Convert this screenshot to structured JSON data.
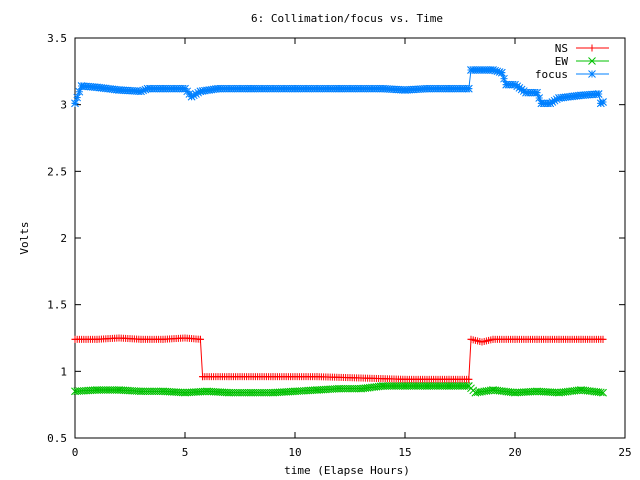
{
  "chart_data": {
    "type": "line",
    "title": "6: Collimation/focus vs. Time",
    "xlabel": "time (Elapse Hours)",
    "ylabel": "Volts",
    "xlim": [
      0,
      25
    ],
    "ylim": [
      0.5,
      3.5
    ],
    "xticks": [
      0,
      5,
      10,
      15,
      20,
      25
    ],
    "yticks": [
      0.5,
      1,
      1.5,
      2,
      2.5,
      3,
      3.5
    ],
    "xtick_labels": [
      "0",
      "5",
      "10",
      "15",
      "20",
      "25"
    ],
    "ytick_labels": [
      "0.5",
      "1",
      "1.5",
      "2",
      "2.5",
      "3",
      "3.5"
    ],
    "grid": false,
    "legend_position": "top-right",
    "series": [
      {
        "name": "NS",
        "color": "#ff0000",
        "marker": "plus",
        "points": [
          [
            0,
            1.24
          ],
          [
            1,
            1.24
          ],
          [
            2,
            1.25
          ],
          [
            3,
            1.24
          ],
          [
            4,
            1.24
          ],
          [
            5,
            1.25
          ],
          [
            5.7,
            1.24
          ],
          [
            5.8,
            0.96
          ],
          [
            7,
            0.96
          ],
          [
            9,
            0.96
          ],
          [
            11,
            0.96
          ],
          [
            13,
            0.95
          ],
          [
            15,
            0.94
          ],
          [
            17,
            0.94
          ],
          [
            17.9,
            0.94
          ],
          [
            18,
            1.24
          ],
          [
            18.5,
            1.22
          ],
          [
            19,
            1.24
          ],
          [
            20,
            1.24
          ],
          [
            21,
            1.24
          ],
          [
            22,
            1.24
          ],
          [
            23,
            1.24
          ],
          [
            24,
            1.24
          ]
        ]
      },
      {
        "name": "EW",
        "color": "#00c000",
        "marker": "cross",
        "points": [
          [
            0,
            0.85
          ],
          [
            1,
            0.86
          ],
          [
            2,
            0.86
          ],
          [
            3,
            0.85
          ],
          [
            4,
            0.85
          ],
          [
            5,
            0.84
          ],
          [
            6,
            0.85
          ],
          [
            7,
            0.84
          ],
          [
            8,
            0.84
          ],
          [
            9,
            0.84
          ],
          [
            10,
            0.85
          ],
          [
            11,
            0.86
          ],
          [
            12,
            0.87
          ],
          [
            13,
            0.87
          ],
          [
            14,
            0.89
          ],
          [
            15,
            0.89
          ],
          [
            16,
            0.89
          ],
          [
            17,
            0.89
          ],
          [
            17.9,
            0.89
          ],
          [
            18.2,
            0.84
          ],
          [
            19,
            0.86
          ],
          [
            20,
            0.84
          ],
          [
            21,
            0.85
          ],
          [
            22,
            0.84
          ],
          [
            23,
            0.86
          ],
          [
            24,
            0.84
          ]
        ]
      },
      {
        "name": "focus",
        "color": "#0080ff",
        "marker": "star",
        "points": [
          [
            0,
            3.01
          ],
          [
            0.3,
            3.14
          ],
          [
            1,
            3.13
          ],
          [
            2,
            3.11
          ],
          [
            3,
            3.1
          ],
          [
            3.3,
            3.12
          ],
          [
            4,
            3.12
          ],
          [
            5,
            3.12
          ],
          [
            5.3,
            3.06
          ],
          [
            5.7,
            3.1
          ],
          [
            6.5,
            3.12
          ],
          [
            8,
            3.12
          ],
          [
            10,
            3.12
          ],
          [
            12,
            3.12
          ],
          [
            14,
            3.12
          ],
          [
            15,
            3.11
          ],
          [
            16,
            3.12
          ],
          [
            17,
            3.12
          ],
          [
            17.9,
            3.12
          ],
          [
            18,
            3.26
          ],
          [
            19,
            3.26
          ],
          [
            19.4,
            3.24
          ],
          [
            19.6,
            3.15
          ],
          [
            20,
            3.15
          ],
          [
            20.5,
            3.09
          ],
          [
            21,
            3.09
          ],
          [
            21.2,
            3.01
          ],
          [
            21.6,
            3.01
          ],
          [
            22,
            3.05
          ],
          [
            23,
            3.07
          ],
          [
            23.8,
            3.08
          ],
          [
            23.9,
            3.01
          ],
          [
            24,
            3.02
          ]
        ]
      }
    ]
  }
}
